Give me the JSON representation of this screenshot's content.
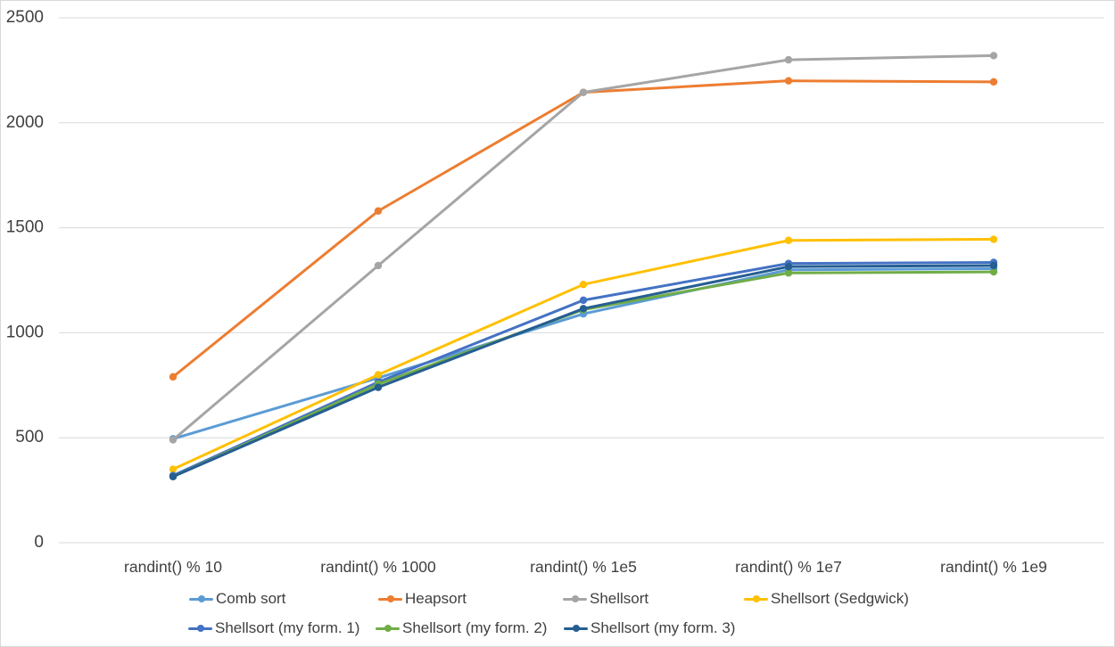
{
  "chart_data": {
    "type": "line",
    "title": "",
    "xlabel": "",
    "ylabel": "",
    "categories": [
      "randint() % 10",
      "randint() % 1000",
      "randint() % 1e5",
      "randint() % 1e7",
      "randint() % 1e9"
    ],
    "series": [
      {
        "name": "Comb sort",
        "color": "#5B9BD5",
        "values": [
          495,
          785,
          1090,
          1300,
          1305
        ]
      },
      {
        "name": "Heapsort",
        "color": "#ED7D31",
        "values": [
          790,
          1580,
          2145,
          2200,
          2195
        ]
      },
      {
        "name": "Shellsort",
        "color": "#A5A5A5",
        "values": [
          490,
          1320,
          2145,
          2300,
          2320
        ]
      },
      {
        "name": "Shellsort (Sedgwick)",
        "color": "#FFC000",
        "values": [
          350,
          800,
          1230,
          1440,
          1445
        ]
      },
      {
        "name": "Shellsort (my form. 1)",
        "color": "#4472C4",
        "values": [
          320,
          765,
          1155,
          1330,
          1335
        ]
      },
      {
        "name": "Shellsort (my form. 2)",
        "color": "#70AD47",
        "values": [
          315,
          755,
          1110,
          1285,
          1290
        ]
      },
      {
        "name": "Shellsort (my form. 3)",
        "color": "#255E91",
        "values": [
          315,
          740,
          1115,
          1315,
          1320
        ]
      }
    ],
    "ylim": [
      0,
      2500
    ],
    "ytick_interval": 500,
    "yticks": [
      "0",
      "500",
      "1000",
      "1500",
      "2000",
      "2500"
    ],
    "grid": true,
    "legend_position": "bottom",
    "legend_rows": [
      [
        0,
        1,
        2,
        3
      ],
      [
        4,
        5,
        6
      ]
    ]
  },
  "style": {
    "text_color": "#404040",
    "grid_color": "#D9D9D9",
    "border_color": "#D9D9D9",
    "background": "#FFFFFF"
  }
}
